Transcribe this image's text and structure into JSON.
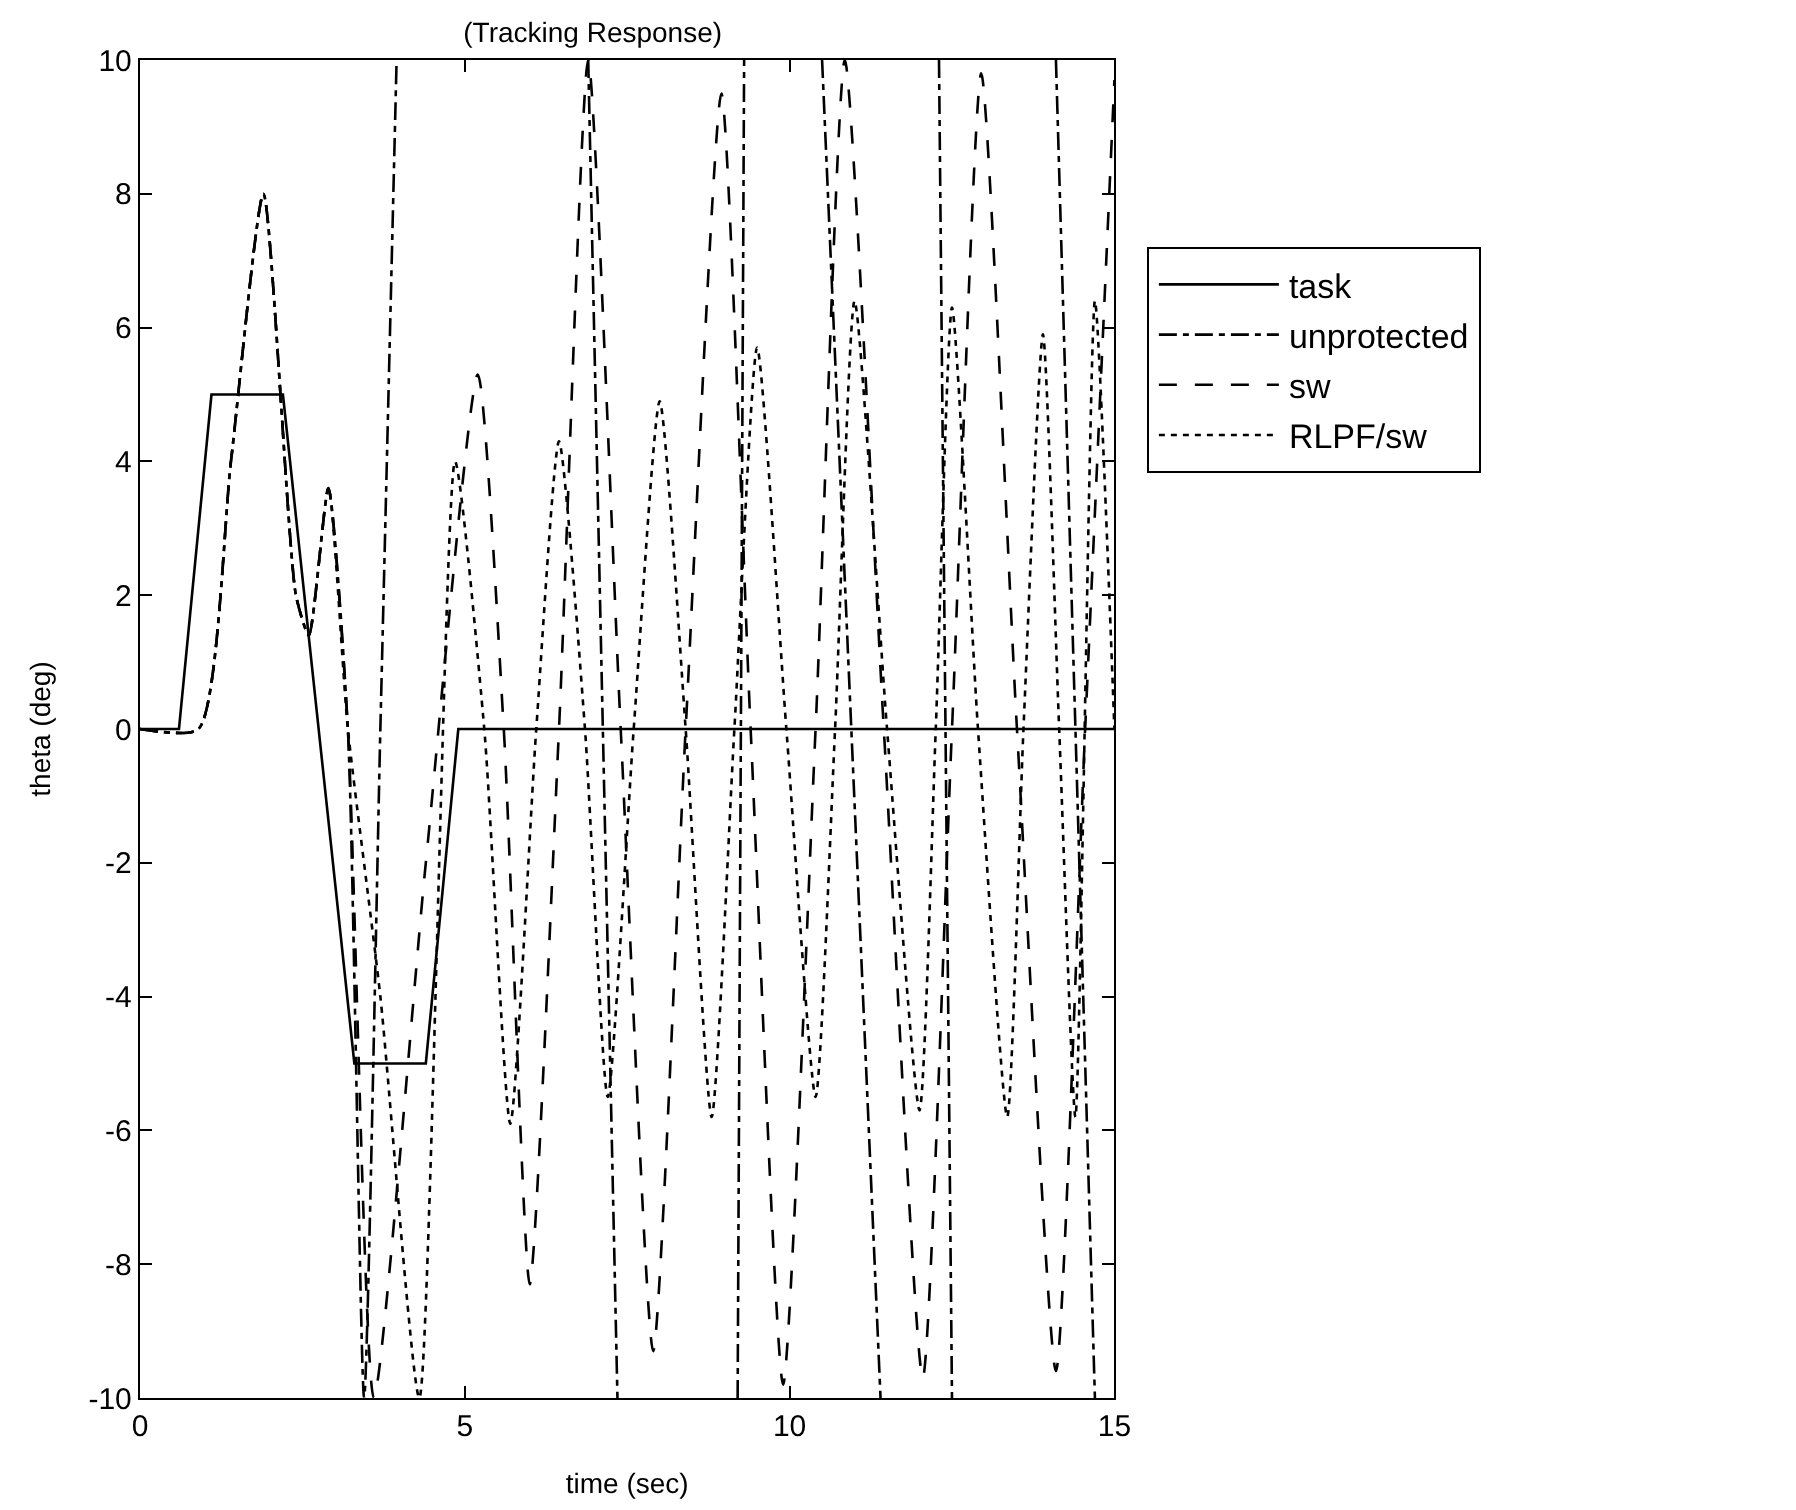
{
  "chart_data": {
    "type": "line",
    "title": "(Tracking Response)",
    "xlabel": "time (sec)",
    "ylabel": "theta (deg)",
    "xlim": [
      0,
      15
    ],
    "ylim": [
      -10,
      10
    ],
    "xticks": [
      0,
      5,
      10,
      15
    ],
    "yticks": [
      -10,
      -8,
      -6,
      -4,
      -2,
      0,
      2,
      4,
      6,
      8,
      10
    ],
    "legend": "top right",
    "marker": "none",
    "series": [
      {
        "name": "task",
        "color": "#000000",
        "line_style": "solid",
        "x": [
          0,
          0.6,
          1.1,
          2.2,
          3.3,
          4.4,
          4.9,
          15
        ],
        "values": [
          0,
          0,
          5,
          5,
          -5,
          -5,
          0,
          0
        ]
      },
      {
        "name": "unprotected",
        "color": "#000000",
        "line_style": "dashdot",
        "x": [
          0,
          0.9,
          1.4,
          1.9,
          2.4,
          2.6,
          2.9,
          3.2,
          3.45,
          3.7,
          3.95,
          null,
          6.9,
          7.35,
          null,
          9.2,
          9.3,
          null,
          10.5,
          11.4,
          null,
          12.3,
          12.5,
          null,
          14.1,
          14.7
        ],
        "values": [
          0,
          0,
          4,
          8,
          2,
          1.4,
          3.6,
          0,
          -10,
          0,
          10,
          null,
          10,
          -10,
          null,
          -10,
          10,
          null,
          10,
          -10,
          null,
          10,
          -10,
          null,
          10,
          -10
        ]
      },
      {
        "name": "sw",
        "color": "#000000",
        "line_style": "dashed",
        "x": [
          0,
          0.9,
          1.4,
          1.9,
          2.4,
          2.6,
          2.9,
          3.2,
          3.6,
          4.4,
          5.2,
          5.6,
          6.0,
          6.45,
          6.9,
          7.4,
          7.9,
          8.4,
          8.95,
          9.4,
          9.9,
          10.4,
          10.85,
          11.45,
          12.05,
          12.5,
          12.95,
          13.5,
          14.1,
          14.55,
          15
        ],
        "values": [
          0,
          0,
          4,
          8,
          2,
          1.4,
          3.6,
          0,
          -10,
          -2,
          5.3,
          0,
          -8.3,
          0,
          10,
          0,
          -9.3,
          0,
          9.5,
          0,
          -9.8,
          0,
          10,
          0,
          -9.7,
          0,
          9.8,
          0,
          -9.6,
          0,
          9.7
        ]
      },
      {
        "name": "RLPF/sw",
        "color": "#000000",
        "line_style": "dotted",
        "x": [
          0,
          0.9,
          1.4,
          1.9,
          2.4,
          2.6,
          2.9,
          3.2,
          3.7,
          4.3,
          4.85,
          5.3,
          5.7,
          6.1,
          6.45,
          6.85,
          7.2,
          7.6,
          8.0,
          8.4,
          8.8,
          9.15,
          9.5,
          9.95,
          10.4,
          10.7,
          11.0,
          11.5,
          12.0,
          12.25,
          12.5,
          12.9,
          13.35,
          13.6,
          13.9,
          14.15,
          14.4,
          14.7,
          15
        ],
        "values": [
          0,
          0,
          4,
          8,
          2,
          1.4,
          3.6,
          0,
          -4,
          -10,
          4,
          0,
          -5.9,
          0,
          4.3,
          0,
          -5.5,
          0,
          4.9,
          0,
          -5.8,
          0,
          5.7,
          0,
          -5.5,
          0,
          6.4,
          0,
          -5.7,
          0,
          6.3,
          0,
          -5.8,
          0,
          5.9,
          0,
          -5.8,
          6.4,
          0
        ]
      }
    ]
  }
}
